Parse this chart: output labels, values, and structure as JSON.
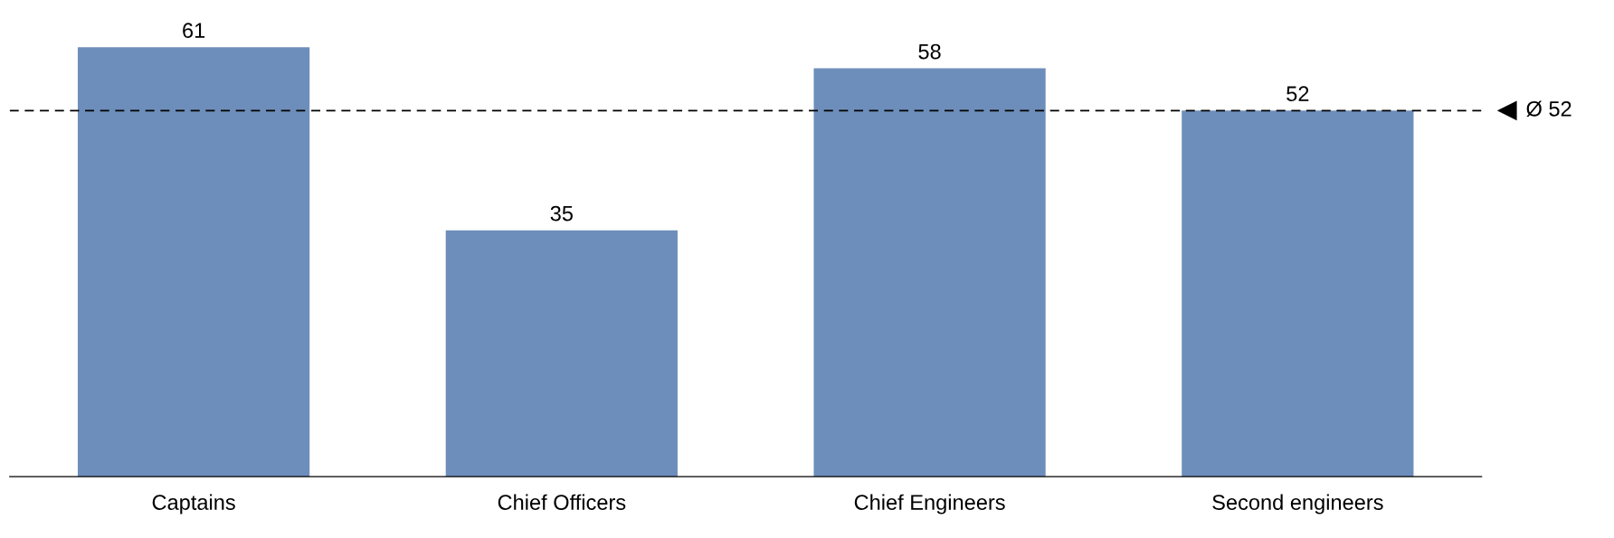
{
  "chart_data": {
    "type": "bar",
    "categories": [
      "Captains",
      "Chief Officers",
      "Chief Engineers",
      "Second engineers"
    ],
    "values": [
      61,
      35,
      58,
      52
    ],
    "color": "#6d8eba",
    "data_labels": true,
    "grid": false,
    "legend": false,
    "tick_labels": "x",
    "ref_lines": [
      {
        "axis": "y",
        "value": 52,
        "label": "Ø 52",
        "color": "#000000",
        "line_style": "dashed"
      }
    ]
  }
}
